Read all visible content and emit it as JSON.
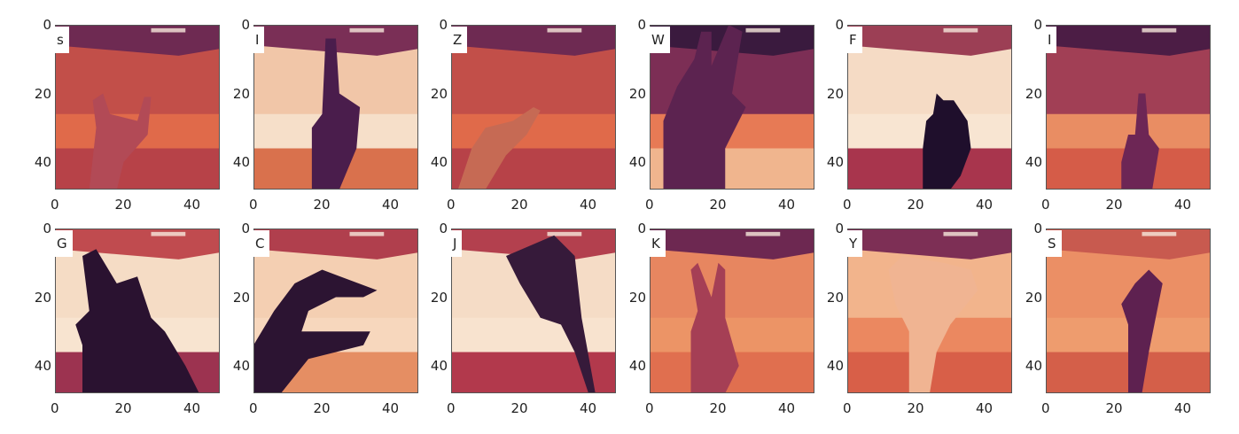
{
  "panels": [
    {
      "label": "s",
      "colors": {
        "wall": "#e06a4a",
        "upper": "#c24f49",
        "lower": "#b74248",
        "ceiling": "#6e2a52",
        "hand": "#b24a56"
      }
    },
    {
      "label": "I",
      "colors": {
        "wall": "#f6dfc9",
        "upper": "#f1c6a8",
        "lower": "#d9714d",
        "ceiling": "#7a2f56",
        "hand": "#4a1d4c"
      }
    },
    {
      "label": "Z",
      "colors": {
        "wall": "#e06a4a",
        "upper": "#c24f49",
        "lower": "#b74248",
        "ceiling": "#6e2a52",
        "hand": "#c66a54"
      }
    },
    {
      "label": "W",
      "colors": {
        "wall": "#e77a55",
        "upper": "#7c2e55",
        "lower": "#f0b58e",
        "ceiling": "#3a1a3e",
        "hand": "#5c2350"
      }
    },
    {
      "label": "F",
      "colors": {
        "wall": "#f8e5d2",
        "upper": "#f5dbc5",
        "lower": "#a8354d",
        "ceiling": "#9c3f55",
        "hand": "#1f0f2c"
      }
    },
    {
      "label": "I",
      "colors": {
        "wall": "#e98d63",
        "upper": "#a13f55",
        "lower": "#d55c48",
        "ceiling": "#4c1d45",
        "hand": "#6d2655"
      }
    },
    {
      "label": "G",
      "colors": {
        "wall": "#f8e4d0",
        "upper": "#f5dcc5",
        "lower": "#9c3350",
        "ceiling": "#c04b4f",
        "hand": "#2a1230"
      }
    },
    {
      "label": "C",
      "colors": {
        "wall": "#f7d7bd",
        "upper": "#f4cfb2",
        "lower": "#e58e63",
        "ceiling": "#b03f4d",
        "hand": "#2c1432"
      }
    },
    {
      "label": "J",
      "colors": {
        "wall": "#f8e3cf",
        "upper": "#f5dcc6",
        "lower": "#b2394c",
        "ceiling": "#b3404e",
        "hand": "#361a3a"
      }
    },
    {
      "label": "K",
      "colors": {
        "wall": "#ec9466",
        "upper": "#e78660",
        "lower": "#e06f4f",
        "ceiling": "#6d2851",
        "hand": "#a53f55"
      }
    },
    {
      "label": "Y",
      "colors": {
        "wall": "#eb8860",
        "upper": "#f2b48c",
        "lower": "#d85f48",
        "ceiling": "#7d2f55",
        "hand": "#f0b492"
      }
    },
    {
      "label": "S",
      "colors": {
        "wall": "#ee9c6e",
        "upper": "#eb8f65",
        "lower": "#d45f49",
        "ceiling": "#c85a4f",
        "hand": "#5e2150"
      }
    }
  ],
  "axes": {
    "x_ticks": [
      "0",
      "20",
      "40"
    ],
    "y_ticks": [
      "0",
      "20",
      "40"
    ]
  }
}
